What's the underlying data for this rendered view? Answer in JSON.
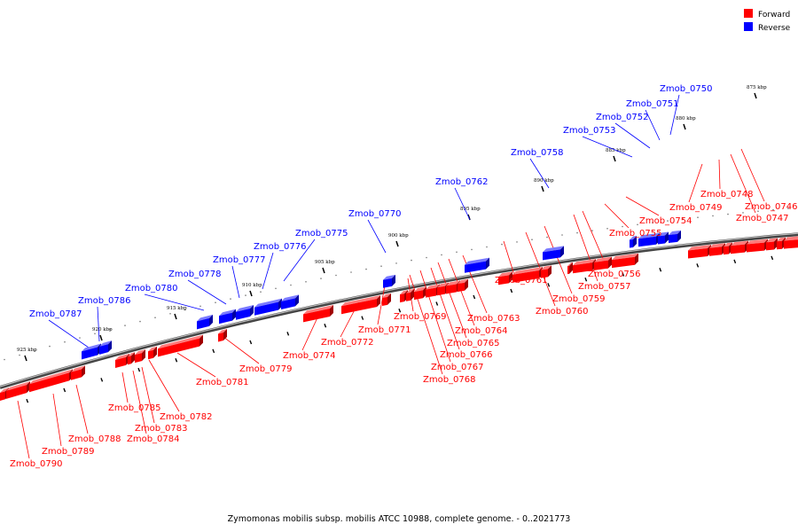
{
  "legend": {
    "forward_label": "Forward",
    "reverse_label": "Reverse",
    "forward_color": "#ff0000",
    "reverse_color": "#0000ff"
  },
  "caption": "Zymomonas mobilis subsp. mobilis ATCC 10988, complete genome. - 0..2021773",
  "scale": {
    "ticks": [
      "875 kbp",
      "880 kbp",
      "885 kbp",
      "890 kbp",
      "895 kbp",
      "900 kbp",
      "905 kbp",
      "910 kbp",
      "915 kbp",
      "920 kbp",
      "925 kbp"
    ]
  },
  "reverse_genes": [
    "Zmob_0750",
    "Zmob_0751",
    "Zmob_0752",
    "Zmob_0753",
    "Zmob_0758",
    "Zmob_0762",
    "Zmob_0770",
    "Zmob_0775",
    "Zmob_0776",
    "Zmob_0777",
    "Zmob_0778",
    "Zmob_0780",
    "Zmob_0786",
    "Zmob_0787"
  ],
  "forward_genes": [
    "Zmob_0746",
    "Zmob_0747",
    "Zmob_0748",
    "Zmob_0749",
    "Zmob_0754",
    "Zmob_0755",
    "Zmob_0756",
    "Zmob_0757",
    "Zmob_0759",
    "Zmob_0760",
    "Zmob_0761",
    "Zmob_0763",
    "Zmob_0764",
    "Zmob_0765",
    "Zmob_0766",
    "Zmob_0767",
    "Zmob_0768",
    "Zmob_0769",
    "Zmob_0771",
    "Zmob_0772",
    "Zmob_0774",
    "Zmob_0779",
    "Zmob_0781",
    "Zmob_0782",
    "Zmob_0783",
    "Zmob_0784",
    "Zmob_0785",
    "Zmob_0788",
    "Zmob_0789",
    "Zmob_0790"
  ]
}
